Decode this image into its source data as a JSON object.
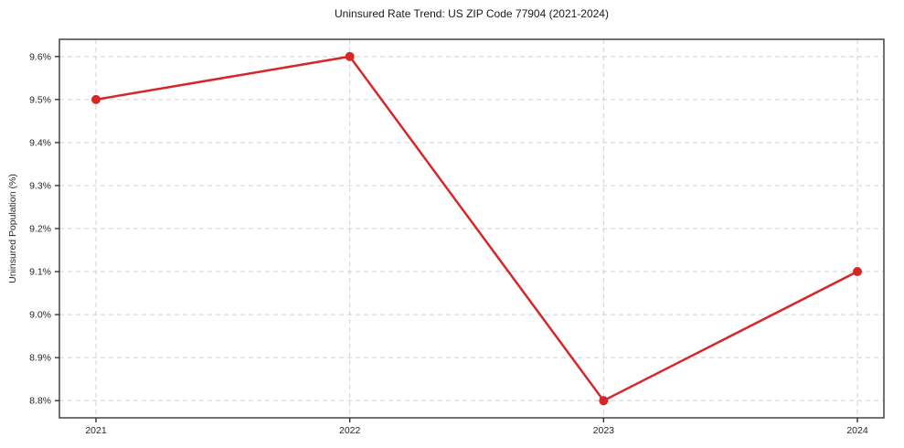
{
  "title": "Uninsured Rate Trend: US ZIP Code 77904 (2021-2024)",
  "chart_data": {
    "type": "line",
    "title": "Uninsured Rate Trend: US ZIP Code 77904 (2021-2024)",
    "xlabel": "",
    "ylabel": "Uninsured Population (%)",
    "x": [
      "2021",
      "2022",
      "2023",
      "2024"
    ],
    "values": [
      9.5,
      9.6,
      8.8,
      9.1
    ],
    "ylim": [
      8.76,
      9.64
    ],
    "yticks": [
      8.8,
      8.9,
      9.0,
      9.1,
      9.2,
      9.3,
      9.4,
      9.5,
      9.6
    ],
    "ytick_labels": [
      "8.8%",
      "8.9%",
      "9.0%",
      "9.1%",
      "9.2%",
      "9.3%",
      "9.4%",
      "9.5%",
      "9.6%"
    ],
    "grid": true,
    "legend": "none",
    "marker": "circle",
    "line_color": "#d62728",
    "marker_color": "#d62728",
    "grid_color": "#d0d0d0",
    "spine_color": "#262626",
    "text_color": "#262626",
    "background_color": "#ffffff"
  }
}
